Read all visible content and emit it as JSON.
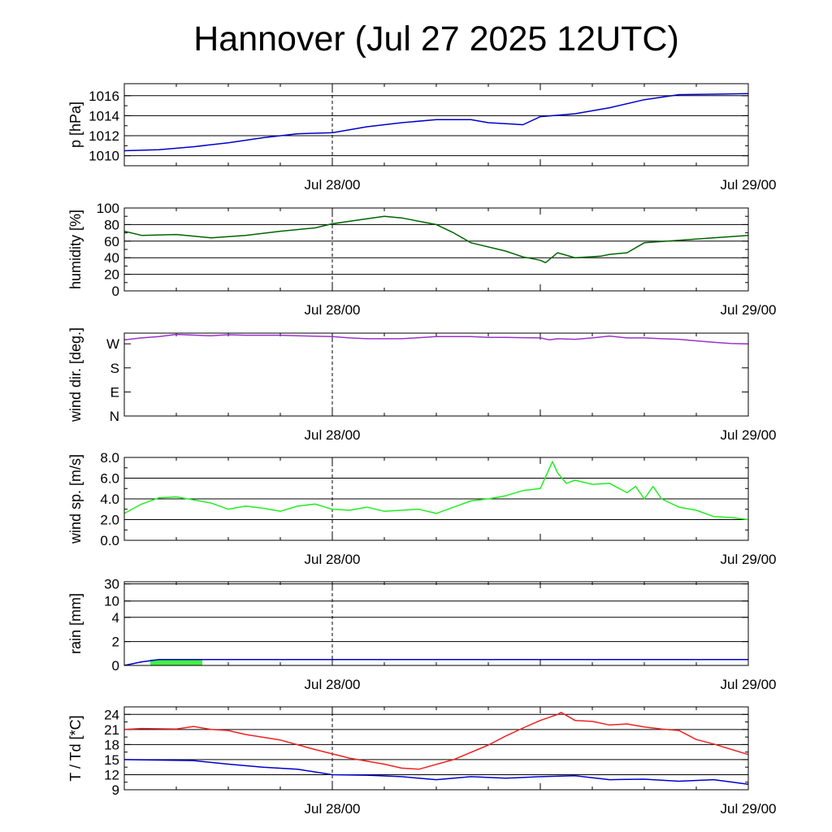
{
  "title": "Hannover (Jul 27 2025 12UTC)",
  "chart_data": {
    "type": "line",
    "x_range": [
      "Jul 27 12UTC",
      "Jul 29 00UTC"
    ],
    "x_tick_labels": [
      "Jul 28/00",
      "Jul 29/00"
    ],
    "x_hours": [
      12,
      15,
      18,
      21,
      24,
      27,
      30,
      33,
      36,
      39,
      42,
      45,
      48
    ],
    "panels": [
      {
        "id": "pressure",
        "ylabel": "p [hPa]",
        "ylim": [
          1009,
          1017.2
        ],
        "ytick_values": [
          1010,
          1012,
          1014,
          1016
        ],
        "ytick_labels": [
          "1010",
          "1012",
          "1014",
          "1016"
        ],
        "grid": "horizontal",
        "series": [
          {
            "color": "#0000cc",
            "values": [
              1010.5,
              1010.6,
              1010.9,
              1011.3,
              1011.8,
              1012.2,
              1012.3,
              1012.9,
              1013.3,
              1013.6,
              1013.6,
              1013.3,
              1013.1,
              1013.9,
              1014.2,
              1014.8,
              1015.6,
              1016.1,
              1016.2
            ],
            "x": [
              12,
              14,
              16,
              18,
              20,
              22,
              24,
              26,
              28,
              30,
              32,
              33,
              35,
              36,
              38,
              40,
              42,
              44,
              48
            ]
          }
        ]
      },
      {
        "id": "humidity",
        "ylabel": "humidity [%]",
        "ylim": [
          0,
          100
        ],
        "ytick_values": [
          0,
          20,
          40,
          60,
          80,
          100
        ],
        "ytick_labels": [
          "0",
          "20",
          "40",
          "60",
          "80",
          "100"
        ],
        "grid": "horizontal",
        "series": [
          {
            "color": "#006400",
            "x": [
              12,
              13,
              15,
              17,
              19,
              21,
              23,
              24,
              26,
              27,
              28,
              30,
              31,
              32,
              34,
              35,
              36,
              36.3,
              37,
              38,
              39.5,
              40,
              41,
              42,
              44,
              48
            ],
            "values": [
              72,
              67,
              68,
              64,
              67,
              72,
              76,
              81,
              87,
              90,
              88,
              80,
              70,
              58,
              48,
              41,
              37,
              34,
              46,
              40,
              42,
              44,
              46,
              58,
              61,
              67
            ]
          }
        ]
      },
      {
        "id": "wind_dir",
        "ylabel": "wind dir. [deg.]",
        "ylim": [
          0,
          310
        ],
        "ytick_values": [
          0,
          90,
          180,
          270
        ],
        "ytick_labels": [
          "N",
          "E",
          "S",
          "W"
        ],
        "grid": "none",
        "series": [
          {
            "color": "#9933cc",
            "x": [
              12,
              13,
              14,
              15,
              17,
              18,
              19,
              20,
              21,
              22,
              24,
              25,
              26,
              28,
              30,
              32,
              33,
              34,
              36,
              36.5,
              37,
              38,
              39,
              40,
              41,
              42,
              43,
              44,
              45,
              46,
              47,
              48
            ],
            "values": [
              285,
              292,
              297,
              305,
              300,
              304,
              302,
              302,
              302,
              300,
              297,
              292,
              289,
              289,
              297,
              297,
              294,
              294,
              292,
              285,
              289,
              287,
              292,
              299,
              292,
              292,
              289,
              287,
              281,
              276,
              271,
              270
            ]
          }
        ]
      },
      {
        "id": "wind_speed",
        "ylabel": "wind sp. [m/s]",
        "ylim": [
          0,
          8
        ],
        "ytick_values": [
          0,
          2,
          4,
          6,
          8
        ],
        "ytick_labels": [
          "0.0",
          "2.0",
          "4.0",
          "6.0",
          "8.0"
        ],
        "grid": "horizontal",
        "series": [
          {
            "color": "#22ee22",
            "x": [
              12,
              13,
              14,
              15,
              17,
              18,
              19,
              20,
              21,
              22,
              23,
              24,
              25,
              26,
              27,
              28,
              29,
              30,
              31,
              32,
              33,
              34,
              35,
              36,
              36.7,
              37,
              37.5,
              38,
              39,
              40,
              41,
              41.5,
              42,
              42.5,
              43,
              44,
              45,
              46,
              47,
              48
            ],
            "values": [
              2.6,
              3.5,
              4.1,
              4.2,
              3.6,
              3.0,
              3.3,
              3.1,
              2.8,
              3.3,
              3.5,
              3.0,
              2.9,
              3.2,
              2.8,
              2.9,
              3.0,
              2.6,
              3.2,
              3.8,
              4.0,
              4.3,
              4.8,
              5.0,
              7.6,
              6.5,
              5.5,
              5.8,
              5.4,
              5.5,
              4.6,
              5.2,
              4.0,
              5.2,
              4.0,
              3.2,
              2.9,
              2.3,
              2.2,
              2.0
            ]
          }
        ]
      },
      {
        "id": "rain",
        "ylabel": "rain [mm]",
        "ylim": [
          0,
          30
        ],
        "ytick_values": [
          0,
          2,
          4,
          10,
          30
        ],
        "ytick_labels": [
          "0",
          "2",
          "4",
          "10",
          "30"
        ],
        "grid": "horizontal",
        "series": [
          {
            "color": "#0000cc",
            "name_kind": "accumulated",
            "x": [
              12,
              13,
              14,
              16,
              20,
              24,
              30,
              36,
              42,
              48
            ],
            "values": [
              0,
              0.3,
              0.5,
              0.5,
              0.5,
              0.5,
              0.5,
              0.5,
              0.5,
              0.5
            ]
          }
        ],
        "bars": [
          {
            "color": "#44ee44",
            "x_start": 13.5,
            "x_end": 16.5,
            "value": 0.5
          }
        ]
      },
      {
        "id": "temperature",
        "ylabel": "T / Td [*C]",
        "ylim": [
          9,
          25.5
        ],
        "ytick_values": [
          9,
          12,
          15,
          18,
          21,
          24
        ],
        "ytick_labels": [
          "9",
          "12",
          "15",
          "18",
          "21",
          "24"
        ],
        "grid": "horizontal",
        "series": [
          {
            "color": "#ee2222",
            "x": [
              12,
              13,
              15,
              16,
              17,
              18,
              19,
              21,
              23,
              25,
              27,
              28,
              29,
              31,
              33,
              34,
              35,
              36,
              37,
              37.2,
              38,
              39,
              40,
              41,
              42,
              43,
              44,
              45,
              46,
              48
            ],
            "values": [
              21,
              21.2,
              21.1,
              21.6,
              21.0,
              20.8,
              20.0,
              18.9,
              17.0,
              15.3,
              14.1,
              13.3,
              13.1,
              15.0,
              17.9,
              19.7,
              21.3,
              22.8,
              24.0,
              24.4,
              22.8,
              22.6,
              21.9,
              22.1,
              21.5,
              21.1,
              20.8,
              19.0,
              18.1,
              16.0
            ]
          },
          {
            "color": "#0000cc",
            "x": [
              12,
              14,
              16,
              18,
              20,
              22,
              24,
              26,
              28,
              30,
              32,
              34,
              36,
              38,
              40,
              42,
              44,
              46,
              48
            ],
            "values": [
              15,
              14.9,
              14.8,
              14.1,
              13.5,
              13.1,
              12.0,
              11.9,
              11.6,
              11.0,
              11.6,
              11.3,
              11.6,
              11.8,
              11.0,
              11.1,
              10.7,
              11.0,
              10.1
            ]
          }
        ]
      }
    ]
  }
}
